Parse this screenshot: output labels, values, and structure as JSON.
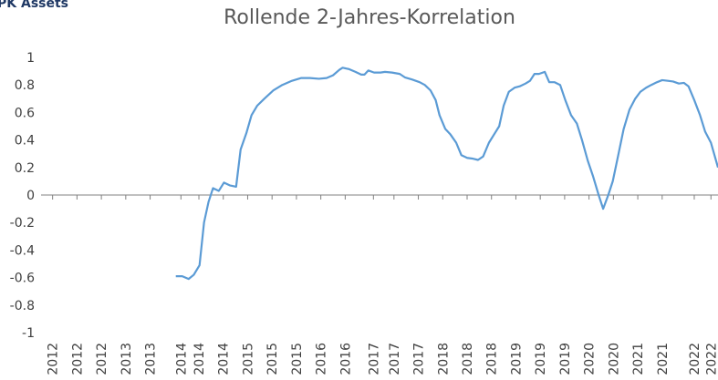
{
  "chart_data": {
    "type": "line",
    "brand": "PK Assets",
    "title": "Rollende 2-Jahres-Korrelation",
    "color": "#5b9bd5",
    "grid": false,
    "xlim": [
      2011.82,
      2022.37
    ],
    "ylim": [
      -1,
      1
    ],
    "yticks": [
      1,
      0.8,
      0.6,
      0.4,
      0.2,
      0,
      -0.2,
      -0.4,
      -0.6,
      -0.8,
      -1
    ],
    "xticks": [
      {
        "value": 2012.0,
        "label": "2012"
      },
      {
        "value": 2012.38,
        "label": "2012"
      },
      {
        "value": 2012.76,
        "label": "2012"
      },
      {
        "value": 2013.14,
        "label": "2013"
      },
      {
        "value": 2013.52,
        "label": "2013"
      },
      {
        "value": 2014.0,
        "label": "2014"
      },
      {
        "value": 2014.28,
        "label": "2014"
      },
      {
        "value": 2014.66,
        "label": "2014"
      },
      {
        "value": 2015.04,
        "label": "2015"
      },
      {
        "value": 2015.42,
        "label": "2015"
      },
      {
        "value": 2015.8,
        "label": "2015"
      },
      {
        "value": 2016.18,
        "label": "2016"
      },
      {
        "value": 2016.56,
        "label": "2016"
      },
      {
        "value": 2017.0,
        "label": "2017"
      },
      {
        "value": 2017.32,
        "label": "2017"
      },
      {
        "value": 2017.7,
        "label": "2017"
      },
      {
        "value": 2018.08,
        "label": "2018"
      },
      {
        "value": 2018.46,
        "label": "2018"
      },
      {
        "value": 2018.84,
        "label": "2018"
      },
      {
        "value": 2019.22,
        "label": "2019"
      },
      {
        "value": 2019.6,
        "label": "2019"
      },
      {
        "value": 2019.98,
        "label": "2019"
      },
      {
        "value": 2020.36,
        "label": "2020"
      },
      {
        "value": 2020.74,
        "label": "2020"
      },
      {
        "value": 2021.12,
        "label": "2021"
      },
      {
        "value": 2021.5,
        "label": "2021"
      },
      {
        "value": 2022.0,
        "label": "2022"
      },
      {
        "value": 2022.26,
        "label": "2022"
      }
    ],
    "x": [
      2013.92,
      2014.02,
      2014.12,
      2014.2,
      2014.29,
      2014.36,
      2014.43,
      2014.5,
      2014.59,
      2014.67,
      2014.76,
      2014.86,
      2014.93,
      2015.02,
      2015.1,
      2015.19,
      2015.3,
      2015.44,
      2015.58,
      2015.73,
      2015.87,
      2016.01,
      2016.15,
      2016.27,
      2016.37,
      2016.47,
      2016.52,
      2016.62,
      2016.72,
      2016.81,
      2016.86,
      2016.92,
      2017.01,
      2017.11,
      2017.18,
      2017.29,
      2017.41,
      2017.49,
      2017.6,
      2017.72,
      2017.8,
      2017.89,
      2017.97,
      2018.03,
      2018.12,
      2018.2,
      2018.29,
      2018.37,
      2018.46,
      2018.54,
      2018.63,
      2018.71,
      2018.8,
      2018.88,
      2018.96,
      2019.03,
      2019.11,
      2019.2,
      2019.28,
      2019.37,
      2019.44,
      2019.51,
      2019.58,
      2019.67,
      2019.74,
      2019.82,
      2019.91,
      2019.99,
      2020.08,
      2020.17,
      2020.25,
      2020.34,
      2020.42,
      2020.51,
      2020.58,
      2020.66,
      2020.73,
      2020.82,
      2020.9,
      2020.99,
      2021.08,
      2021.16,
      2021.25,
      2021.33,
      2021.42,
      2021.5,
      2021.59,
      2021.67,
      2021.76,
      2021.84,
      2021.91,
      2022.0,
      2022.09,
      2022.17,
      2022.26,
      2022.37
    ],
    "values": [
      -0.59,
      -0.59,
      -0.61,
      -0.58,
      -0.51,
      -0.2,
      -0.05,
      0.05,
      0.03,
      0.09,
      0.07,
      0.06,
      0.33,
      0.45,
      0.58,
      0.65,
      0.7,
      0.76,
      0.8,
      0.83,
      0.85,
      0.85,
      0.845,
      0.85,
      0.87,
      0.91,
      0.925,
      0.915,
      0.895,
      0.875,
      0.875,
      0.905,
      0.89,
      0.89,
      0.895,
      0.89,
      0.88,
      0.855,
      0.84,
      0.82,
      0.8,
      0.76,
      0.69,
      0.58,
      0.48,
      0.44,
      0.38,
      0.29,
      0.27,
      0.265,
      0.255,
      0.28,
      0.38,
      0.44,
      0.5,
      0.65,
      0.75,
      0.78,
      0.79,
      0.81,
      0.83,
      0.88,
      0.88,
      0.895,
      0.82,
      0.82,
      0.8,
      0.69,
      0.58,
      0.52,
      0.4,
      0.25,
      0.14,
      0.0,
      -0.1,
      0.0,
      0.1,
      0.3,
      0.48,
      0.62,
      0.7,
      0.75,
      0.78,
      0.8,
      0.82,
      0.835,
      0.83,
      0.825,
      0.81,
      0.815,
      0.79,
      0.69,
      0.58,
      0.46,
      0.38,
      0.2
    ]
  }
}
